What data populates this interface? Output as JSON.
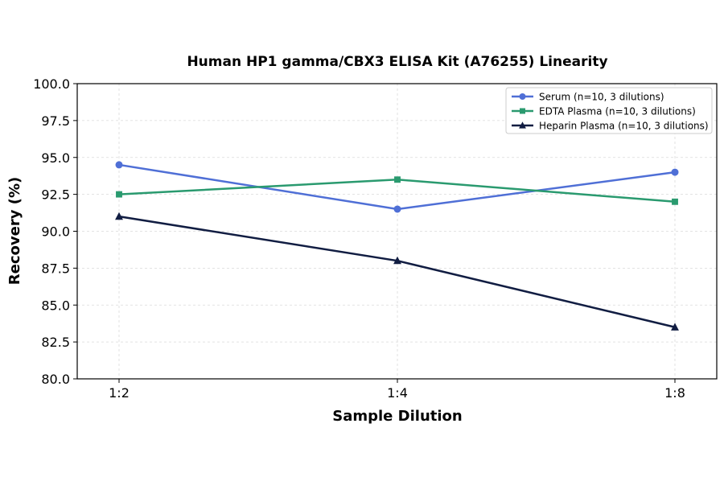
{
  "chart_data": {
    "type": "line",
    "title": "Human HP1 gamma/CBX3 ELISA Kit (A76255) Linearity",
    "xlabel": "Sample Dilution",
    "ylabel": "Recovery (%)",
    "categories": [
      "1:2",
      "1:4",
      "1:8"
    ],
    "ylim": [
      80.0,
      100.0
    ],
    "yticks": [
      "80.0",
      "82.5",
      "85.0",
      "87.5",
      "90.0",
      "92.5",
      "95.0",
      "97.5",
      "100.0"
    ],
    "grid": true,
    "legend_position": "top-right",
    "series": [
      {
        "name": "Serum (n=10, 3 dilutions)",
        "values": [
          94.5,
          91.5,
          94.0
        ],
        "color": "#4f6fd6",
        "marker": "circle"
      },
      {
        "name": "EDTA Plasma (n=10, 3 dilutions)",
        "values": [
          92.5,
          93.5,
          92.0
        ],
        "color": "#2a9a6f",
        "marker": "square"
      },
      {
        "name": "Heparin Plasma (n=10, 3 dilutions)",
        "values": [
          91.0,
          88.0,
          83.5
        ],
        "color": "#111d42",
        "marker": "triangle"
      }
    ]
  }
}
